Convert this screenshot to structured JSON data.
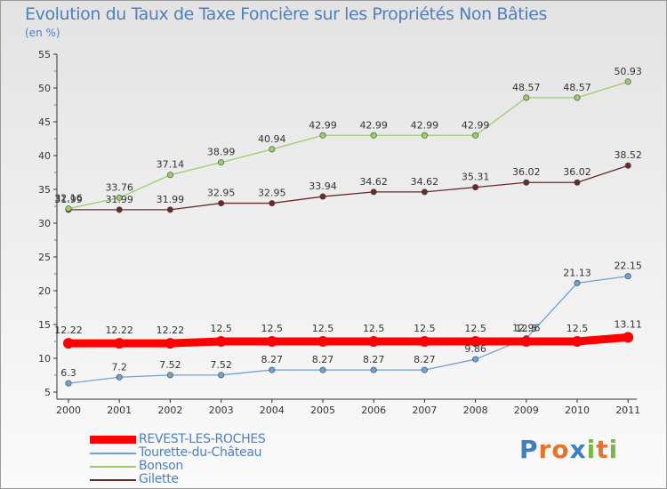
{
  "header": {
    "title": "Evolution du Taux de Taxe Foncière sur les Propriétés Non Bâties",
    "unit": "(en %)"
  },
  "chart_data": {
    "type": "line",
    "title": "Evolution du Taux de Taxe Foncière sur les Propriétés Non Bâties",
    "ylabel": "(en %)",
    "xlabel": "",
    "x": [
      "2000",
      "2001",
      "2002",
      "2003",
      "2004",
      "2005",
      "2006",
      "2007",
      "2008",
      "2009",
      "2010",
      "2011"
    ],
    "ylim": [
      5,
      55
    ],
    "yticks": [
      5,
      10,
      15,
      20,
      25,
      30,
      35,
      40,
      45,
      50,
      55
    ],
    "grid": false,
    "legend_position": "bottom-left",
    "series": [
      {
        "name": "REVEST-LES-ROCHES",
        "color": "#ff0000",
        "values": [
          12.22,
          12.22,
          12.22,
          12.5,
          12.5,
          12.5,
          12.5,
          12.5,
          12.5,
          12.5,
          12.5,
          13.11
        ],
        "labels": [
          "12.22",
          "12.22",
          "12.22",
          "12.5",
          "12.5",
          "12.5",
          "12.5",
          "12.5",
          "12.5",
          "12.5",
          "12.5",
          "13.11"
        ]
      },
      {
        "name": "Tourette-du-Château",
        "color": "#6fa1d4",
        "values": [
          6.3,
          7.2,
          7.52,
          7.52,
          8.27,
          8.27,
          8.27,
          8.27,
          9.86,
          12.96,
          21.13,
          22.15
        ],
        "labels": [
          "6.3",
          "7.2",
          "7.52",
          "7.52",
          "8.27",
          "8.27",
          "8.27",
          "8.27",
          "9.86",
          "12.96",
          "21.13",
          "22.15"
        ]
      },
      {
        "name": "Bonson",
        "color": "#9acd6b",
        "values": [
          32.16,
          33.76,
          37.14,
          38.99,
          40.94,
          42.99,
          42.99,
          42.99,
          42.99,
          48.57,
          48.57,
          50.93
        ],
        "labels": [
          "32.16",
          "33.76",
          "37.14",
          "38.99",
          "40.94",
          "42.99",
          "42.99",
          "42.99",
          "42.99",
          "48.57",
          "48.57",
          "50.93"
        ]
      },
      {
        "name": "Gilette",
        "color": "#6b2a2a",
        "values": [
          31.99,
          31.99,
          31.99,
          32.95,
          32.95,
          33.94,
          34.62,
          34.62,
          35.31,
          36.02,
          36.02,
          38.52
        ],
        "labels": [
          "31.99",
          "31.99",
          "31.99",
          "32.95",
          "32.95",
          "33.94",
          "34.62",
          "34.62",
          "35.31",
          "36.02",
          "36.02",
          "38.52"
        ]
      }
    ]
  },
  "logo": {
    "letters": [
      "P",
      "r",
      "o",
      "x",
      "i",
      "t",
      "i"
    ],
    "colors": [
      "#3d7fc1",
      "#e2742b",
      "#e2742b",
      "#3d7fc1",
      "#7ab648",
      "#e2742b",
      "#7ab648"
    ]
  }
}
